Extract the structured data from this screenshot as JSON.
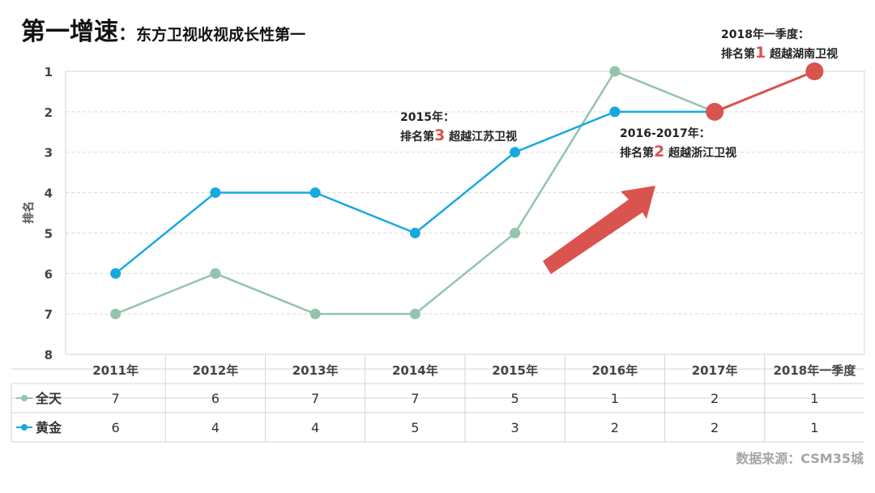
{
  "title": {
    "main": "第一增速",
    "separator": "：",
    "subtitle": "东方卫视收视成长性第一"
  },
  "chart_data": {
    "type": "line",
    "categories": [
      "2011年",
      "2012年",
      "2013年",
      "2014年",
      "2015年",
      "2016年",
      "2017年",
      "2018年一季度"
    ],
    "series": [
      {
        "name": "全天",
        "values": [
          7,
          6,
          7,
          7,
          5,
          1,
          2,
          1
        ],
        "color": "#93c4ad"
      },
      {
        "name": "黄金",
        "values": [
          6,
          4,
          4,
          5,
          3,
          2,
          2,
          1
        ],
        "color": "#17a9de"
      }
    ],
    "highlight_color": "#d9534f",
    "ylabel": "排名",
    "ylim": [
      1,
      8
    ],
    "y_inverted": true,
    "y_ticks": [
      "1",
      "2",
      "3",
      "4",
      "5",
      "6",
      "7",
      "8"
    ],
    "grid": "horizontal dashed",
    "legend": "data table below chart"
  },
  "annotations": {
    "a2015": {
      "year": "2015年：",
      "rank_prefix": "排名第",
      "rank": "3",
      "rank_suffix": "超越江苏卫视"
    },
    "a2016": {
      "year": "2016-2017年：",
      "rank_prefix": "排名第",
      "rank": "2",
      "rank_suffix": "超越浙江卫视"
    },
    "a2018": {
      "year": "2018年一季度：",
      "rank_prefix": "排名第",
      "rank": "1",
      "rank_suffix": "超越湖南卫视"
    }
  },
  "source": "数据来源：CSM35城"
}
